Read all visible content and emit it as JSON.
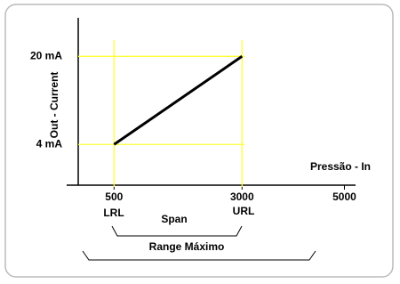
{
  "chart_data": {
    "type": "line",
    "x_label": "Pressão - In",
    "y_label": "Out - Current",
    "x": [
      500,
      3000
    ],
    "values": [
      4,
      20
    ],
    "color": "#000000",
    "guide_color": "#ffff33",
    "xlim": [
      -200,
      5200
    ],
    "ylim": [
      -3.4,
      27
    ],
    "xticks": [
      500,
      3000,
      5000
    ],
    "yticks": [
      {
        "value": 4,
        "label": "4 mA"
      },
      {
        "value": 20,
        "label": "20 mA"
      }
    ],
    "annotations": [
      "LRL",
      "URL",
      "Span",
      "Range Máximo"
    ]
  }
}
